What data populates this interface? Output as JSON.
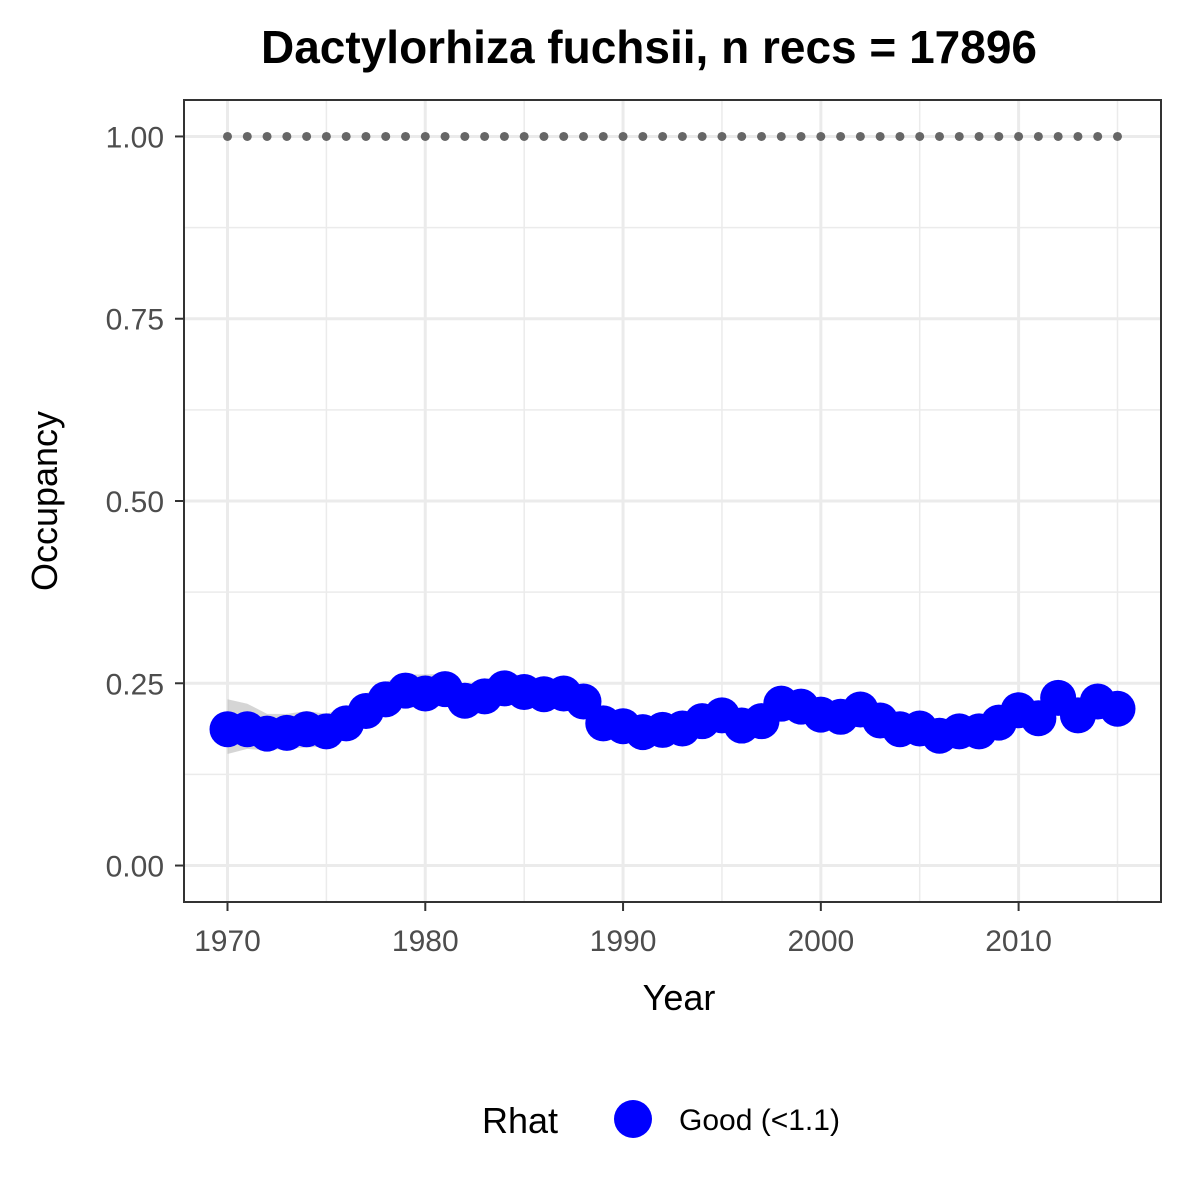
{
  "chart_data": {
    "type": "line",
    "title": "Dactylorhiza fuchsii, n recs = 17896",
    "xlabel": "Year",
    "ylabel": "Occupancy",
    "xlim": [
      1967.8,
      2017.2
    ],
    "ylim": [
      -0.05,
      1.05
    ],
    "x_ticks": [
      1970,
      1980,
      1990,
      2000,
      2010
    ],
    "x_tick_labels": [
      "1970",
      "1980",
      "1990",
      "2000",
      "2010"
    ],
    "y_ticks": [
      0.0,
      0.25,
      0.5,
      0.75,
      1.0
    ],
    "y_tick_labels": [
      "0.00",
      "0.25",
      "0.50",
      "0.75",
      "1.00"
    ],
    "grid": true,
    "legend": {
      "title": "Rhat",
      "position": "bottom",
      "entries": [
        {
          "label": "Good (<1.1)",
          "color": "#0000ff"
        }
      ]
    },
    "x": [
      1970,
      1971,
      1972,
      1973,
      1974,
      1975,
      1976,
      1977,
      1978,
      1979,
      1980,
      1981,
      1982,
      1983,
      1984,
      1985,
      1986,
      1987,
      1988,
      1989,
      1990,
      1991,
      1992,
      1993,
      1994,
      1995,
      1996,
      1997,
      1998,
      1999,
      2000,
      2001,
      2002,
      2003,
      2004,
      2005,
      2006,
      2007,
      2008,
      2009,
      2010,
      2011,
      2012,
      2013,
      2014,
      2015
    ],
    "series": [
      {
        "name": "Good (<1.1)",
        "color": "#0000ff",
        "values": [
          0.187,
          0.187,
          0.181,
          0.182,
          0.187,
          0.184,
          0.195,
          0.212,
          0.228,
          0.24,
          0.236,
          0.242,
          0.226,
          0.232,
          0.243,
          0.238,
          0.235,
          0.236,
          0.225,
          0.195,
          0.191,
          0.183,
          0.186,
          0.188,
          0.198,
          0.206,
          0.192,
          0.198,
          0.222,
          0.218,
          0.207,
          0.204,
          0.214,
          0.199,
          0.187,
          0.188,
          0.178,
          0.184,
          0.184,
          0.196,
          0.213,
          0.202,
          0.23,
          0.206,
          0.225,
          0.215
        ],
        "ci_lower": [
          0.153,
          0.16,
          0.158,
          0.16,
          0.162,
          0.163,
          0.175,
          0.193,
          0.21,
          0.218,
          0.215,
          0.22,
          0.208,
          0.214,
          0.223,
          0.22,
          0.218,
          0.218,
          0.208,
          0.178,
          0.173,
          0.168,
          0.17,
          0.172,
          0.182,
          0.188,
          0.176,
          0.182,
          0.204,
          0.2,
          0.191,
          0.188,
          0.197,
          0.183,
          0.172,
          0.173,
          0.163,
          0.168,
          0.168,
          0.18,
          0.196,
          0.186,
          0.212,
          0.19,
          0.208,
          0.198
        ],
        "ci_upper": [
          0.228,
          0.222,
          0.208,
          0.208,
          0.212,
          0.208,
          0.218,
          0.236,
          0.252,
          0.262,
          0.262,
          0.263,
          0.248,
          0.255,
          0.265,
          0.26,
          0.256,
          0.257,
          0.246,
          0.213,
          0.21,
          0.2,
          0.202,
          0.205,
          0.215,
          0.224,
          0.21,
          0.216,
          0.24,
          0.236,
          0.224,
          0.221,
          0.232,
          0.216,
          0.204,
          0.205,
          0.195,
          0.2,
          0.2,
          0.212,
          0.23,
          0.22,
          0.248,
          0.224,
          0.242,
          0.233
        ]
      },
      {
        "name": "",
        "style": "dotted",
        "color": "#666666",
        "constant": 1.0
      }
    ]
  }
}
